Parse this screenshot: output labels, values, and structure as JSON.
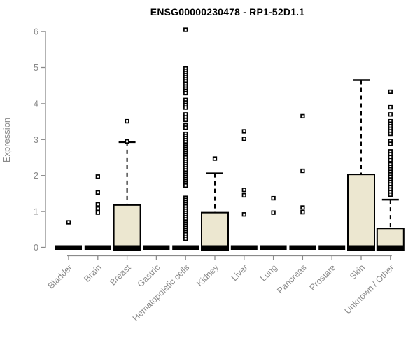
{
  "chart_data": {
    "type": "boxplot",
    "title": "ENSG00000230478 - RP1-52D1.1",
    "xlabel": "",
    "ylabel": "Expression",
    "ylim": [
      0,
      6
    ],
    "yticks": [
      0,
      1,
      2,
      3,
      4,
      5,
      6
    ],
    "grid": false,
    "legend": "none",
    "colors": {
      "box_fill": "#ece7d0",
      "box_stroke": "#000000",
      "axis": "#8a8a8a",
      "title": "#000000",
      "background": "#ffffff"
    },
    "categories": [
      "Bladder",
      "Brain",
      "Breast",
      "Gastric",
      "Hematopoietic cells",
      "Kidney",
      "Liver",
      "Lung",
      "Pancreas",
      "Prostate",
      "Skin",
      "Unknown / Other"
    ],
    "series": [
      {
        "category": "Bladder",
        "q1": 0,
        "median": 0,
        "q3": 0,
        "whisker_low": 0,
        "whisker_high": 0,
        "outliers": [
          0.7
        ]
      },
      {
        "category": "Brain",
        "q1": 0,
        "median": 0,
        "q3": 0,
        "whisker_low": 0,
        "whisker_high": 0,
        "outliers": [
          1.97,
          1.53,
          1.2,
          1.08,
          0.97
        ]
      },
      {
        "category": "Breast",
        "q1": 0,
        "median": 0,
        "q3": 1.18,
        "whisker_low": 0,
        "whisker_high": 2.93,
        "outliers": [
          3.51,
          2.95
        ]
      },
      {
        "category": "Gastric",
        "q1": 0,
        "median": 0,
        "q3": 0,
        "whisker_low": 0,
        "whisker_high": 0,
        "outliers": []
      },
      {
        "category": "Hematopoietic cells",
        "q1": 0,
        "median": 0,
        "q3": 0,
        "whisker_low": 0,
        "whisker_high": 0,
        "outliers": [
          6.05,
          4.97,
          4.91,
          4.85,
          4.79,
          4.73,
          4.67,
          4.61,
          4.55,
          4.47,
          4.41,
          4.35,
          4.29,
          4.1,
          4.03,
          3.96,
          3.89,
          3.7,
          3.62,
          3.55,
          3.4,
          3.33,
          3.16,
          3.1,
          3.04,
          2.98,
          2.92,
          2.86,
          2.8,
          2.74,
          2.68,
          2.62,
          2.56,
          2.5,
          2.44,
          2.38,
          2.32,
          2.26,
          2.2,
          2.14,
          2.08,
          2.02,
          1.96,
          1.9,
          1.84,
          1.78,
          1.72,
          1.38,
          1.32,
          1.26,
          1.2,
          1.14,
          1.08,
          1.02,
          0.96,
          0.9,
          0.84,
          0.78,
          0.72,
          0.66,
          0.6,
          0.54,
          0.48,
          0.42,
          0.36,
          0.3,
          0.24
        ]
      },
      {
        "category": "Kidney",
        "q1": 0,
        "median": 0,
        "q3": 0.97,
        "whisker_low": 0,
        "whisker_high": 2.06,
        "outliers": [
          2.47
        ]
      },
      {
        "category": "Liver",
        "q1": 0,
        "median": 0,
        "q3": 0,
        "whisker_low": 0,
        "whisker_high": 0,
        "outliers": [
          3.23,
          3.02,
          1.6,
          1.45,
          0.92
        ]
      },
      {
        "category": "Lung",
        "q1": 0,
        "median": 0,
        "q3": 0,
        "whisker_low": 0,
        "whisker_high": 0,
        "outliers": [
          1.37,
          0.97
        ]
      },
      {
        "category": "Pancreas",
        "q1": 0,
        "median": 0,
        "q3": 0,
        "whisker_low": 0,
        "whisker_high": 0,
        "outliers": [
          3.65,
          2.13,
          1.11,
          0.98
        ]
      },
      {
        "category": "Prostate",
        "q1": 0,
        "median": 0,
        "q3": 0,
        "whisker_low": 0,
        "whisker_high": 0,
        "outliers": []
      },
      {
        "category": "Skin",
        "q1": 0,
        "median": 0,
        "q3": 2.03,
        "whisker_low": 0,
        "whisker_high": 4.65,
        "outliers": []
      },
      {
        "category": "Unknown / Other",
        "q1": 0,
        "median": 0,
        "q3": 0.53,
        "whisker_low": 0,
        "whisker_high": 1.33,
        "outliers": [
          4.33,
          3.9,
          3.7,
          3.51,
          3.44,
          3.37,
          3.3,
          3.23,
          3.16,
          2.96,
          2.88,
          2.67,
          2.59,
          2.51,
          2.43,
          2.31,
          2.24,
          2.17,
          2.1,
          2.03,
          1.96,
          1.89,
          1.82,
          1.75,
          1.68,
          1.61,
          1.54,
          1.47
        ]
      }
    ]
  }
}
